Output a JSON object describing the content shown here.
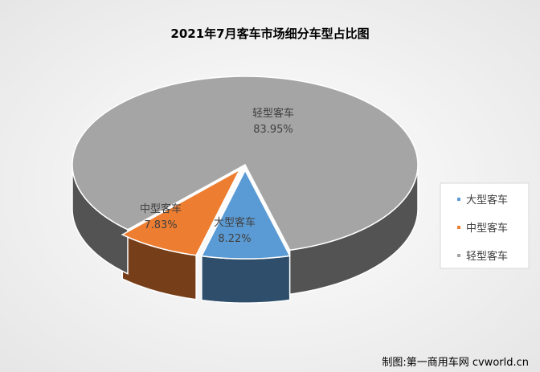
{
  "chart_data": {
    "type": "pie",
    "title": "2021年7月客车市场细分车型占比图",
    "categories": [
      "大型客车",
      "中型客车",
      "轻型客车"
    ],
    "values": [
      8.22,
      7.83,
      83.95
    ],
    "value_labels": [
      "8.22%",
      "7.83%",
      "83.95%"
    ],
    "unit": "%",
    "colors": [
      "#5b9bd5",
      "#ed7d31",
      "#a5a5a5"
    ],
    "legend_position": "right",
    "style": "3d-exploded"
  },
  "credit": "制图:第一商用车网 cvworld.cn",
  "background_color": "#f2f2f2"
}
